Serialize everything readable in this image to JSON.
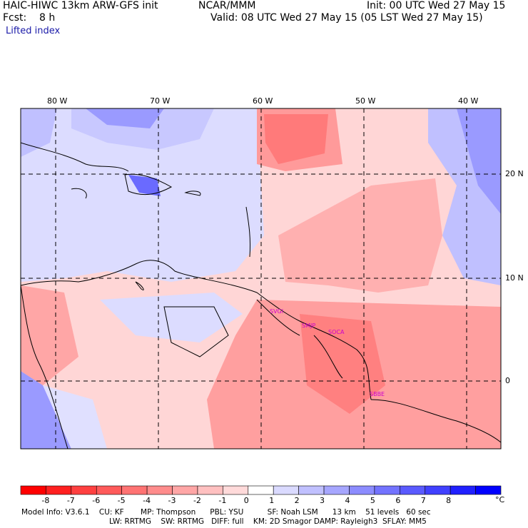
{
  "header": {
    "title_left": "HAIC-HIWC 13km ARW-GFS init",
    "title_center": "NCAR/MMM",
    "init": "Init: 00 UTC Wed 27 May 15",
    "fcst": "Fcst:    8 h",
    "valid": "Valid: 08 UTC Wed 27 May 15 (05 LST Wed 27 May 15)",
    "field": "Lifted index"
  },
  "axes": {
    "lon_labels": [
      "80 W",
      "70 W",
      "60 W",
      "50 W",
      "40 W"
    ],
    "lat_labels": [
      "20 N",
      "10 N",
      "0"
    ]
  },
  "stations": [
    "SVGI",
    "SMJP",
    "SOCA",
    "SBBE"
  ],
  "colorbar": {
    "labels": [
      "-8",
      "-7",
      "-6",
      "-5",
      "-4",
      "-3",
      "-2",
      "-1",
      "0",
      "1",
      "2",
      "3",
      "4",
      "5",
      "6",
      "7",
      "8"
    ],
    "unit": "°C",
    "colors": [
      "#ff0000",
      "#ff2020",
      "#ff4040",
      "#ff5a5a",
      "#ff7373",
      "#ff8c8c",
      "#ffa6a6",
      "#ffc0c0",
      "#ffdada",
      "#ffffff",
      "#dadaff",
      "#c0c0ff",
      "#a6a6ff",
      "#8c8cff",
      "#7373ff",
      "#5a5aff",
      "#4040ff",
      "#2020ff",
      "#0000ff"
    ]
  },
  "model_info": {
    "line1": "Model Info: V3.6.1    CU: KF       MP: Thompson      PBL: YSU          SF: Noah LSM      13 km    51 levels   60 sec",
    "line2": "LW: RRTMG    SW: RRTMG   DIFF: full    KM: 2D Smagor DAMP: Rayleigh3  SFLAY: MM5"
  }
}
